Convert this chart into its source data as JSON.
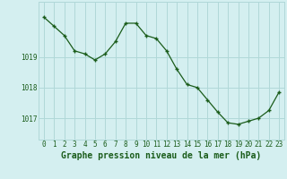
{
  "x": [
    0,
    1,
    2,
    3,
    4,
    5,
    6,
    7,
    8,
    9,
    10,
    11,
    12,
    13,
    14,
    15,
    16,
    17,
    18,
    19,
    20,
    21,
    22,
    23
  ],
  "y": [
    1020.3,
    1020.0,
    1019.7,
    1019.2,
    1019.1,
    1018.9,
    1019.1,
    1019.5,
    1020.1,
    1020.1,
    1019.7,
    1019.6,
    1019.2,
    1018.6,
    1018.1,
    1018.0,
    1017.6,
    1017.2,
    1016.85,
    1016.8,
    1016.9,
    1017.0,
    1017.25,
    1017.85
  ],
  "line_color": "#1a5c1a",
  "marker_color": "#1a5c1a",
  "bg_color": "#d4eff0",
  "grid_color": "#b0d8d8",
  "xlabel": "Graphe pression niveau de la mer (hPa)",
  "yticks": [
    1017,
    1018,
    1019
  ],
  "ylim": [
    1016.3,
    1020.8
  ],
  "xlim": [
    -0.5,
    23.5
  ],
  "xtick_labels": [
    "0",
    "1",
    "2",
    "3",
    "4",
    "5",
    "6",
    "7",
    "8",
    "9",
    "10",
    "11",
    "12",
    "13",
    "14",
    "15",
    "16",
    "17",
    "18",
    "19",
    "20",
    "21",
    "22",
    "23"
  ],
  "tick_fontsize": 5.5,
  "label_fontsize": 7.0
}
